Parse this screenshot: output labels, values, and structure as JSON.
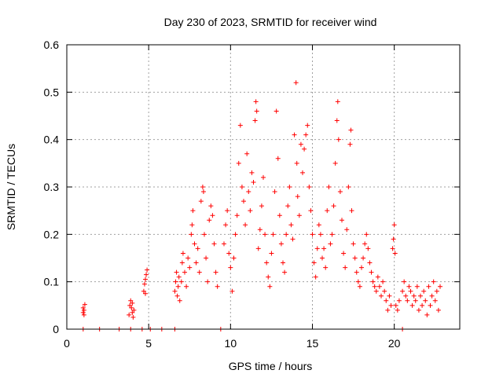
{
  "chart_data": {
    "type": "scatter",
    "title": "Day 230 of 2023, SRMTID for receiver wind",
    "xlabel": "GPS time / hours",
    "ylabel": "SRMTID / TECUs",
    "xlim": [
      0,
      24
    ],
    "ylim": [
      0,
      0.6
    ],
    "x_ticks": [
      0,
      5,
      10,
      15,
      20
    ],
    "x_tick_labels": [
      "0",
      "5",
      "10",
      "15",
      "20"
    ],
    "y_ticks": [
      0,
      0.1,
      0.2,
      0.3,
      0.4,
      0.5,
      0.6
    ],
    "y_tick_labels": [
      "0",
      "0.1",
      "0.2",
      "0.3",
      "0.4",
      "0.5",
      "0.6"
    ],
    "grid": true,
    "marker": "+",
    "color": "#ff0000",
    "series": [
      {
        "name": "SRMTID",
        "points": [
          [
            1.0,
            0.035
          ],
          [
            1.0,
            0.045
          ],
          [
            1.05,
            0.04
          ],
          [
            1.1,
            0.052
          ],
          [
            1.05,
            0.03
          ],
          [
            3.8,
            0.03
          ],
          [
            3.85,
            0.05
          ],
          [
            3.9,
            0.06
          ],
          [
            3.95,
            0.045
          ],
          [
            4.0,
            0.035
          ],
          [
            4.0,
            0.055
          ],
          [
            4.05,
            0.025
          ],
          [
            4.1,
            0.04
          ],
          [
            4.7,
            0.08
          ],
          [
            4.75,
            0.095
          ],
          [
            4.8,
            0.105
          ],
          [
            4.85,
            0.115
          ],
          [
            4.9,
            0.125
          ],
          [
            4.8,
            0.075
          ],
          [
            6.6,
            0.08
          ],
          [
            6.65,
            0.1
          ],
          [
            6.7,
            0.12
          ],
          [
            6.75,
            0.07
          ],
          [
            6.8,
            0.09
          ],
          [
            6.85,
            0.11
          ],
          [
            6.9,
            0.06
          ],
          [
            7.0,
            0.1
          ],
          [
            7.05,
            0.14
          ],
          [
            7.1,
            0.16
          ],
          [
            7.2,
            0.12
          ],
          [
            7.3,
            0.09
          ],
          [
            7.4,
            0.15
          ],
          [
            7.5,
            0.13
          ],
          [
            7.6,
            0.2
          ],
          [
            7.65,
            0.22
          ],
          [
            7.7,
            0.25
          ],
          [
            7.8,
            0.18
          ],
          [
            7.9,
            0.14
          ],
          [
            8.0,
            0.17
          ],
          [
            8.1,
            0.12
          ],
          [
            8.2,
            0.27
          ],
          [
            8.3,
            0.3
          ],
          [
            8.35,
            0.29
          ],
          [
            8.4,
            0.2
          ],
          [
            8.5,
            0.15
          ],
          [
            8.6,
            0.1
          ],
          [
            8.7,
            0.23
          ],
          [
            8.8,
            0.26
          ],
          [
            8.9,
            0.24
          ],
          [
            9.0,
            0.18
          ],
          [
            9.1,
            0.12
          ],
          [
            9.2,
            0.09
          ],
          [
            9.6,
            0.18
          ],
          [
            9.7,
            0.22
          ],
          [
            9.8,
            0.25
          ],
          [
            9.9,
            0.16
          ],
          [
            10.0,
            0.13
          ],
          [
            10.1,
            0.08
          ],
          [
            10.2,
            0.15
          ],
          [
            10.3,
            0.2
          ],
          [
            10.4,
            0.24
          ],
          [
            10.5,
            0.35
          ],
          [
            10.6,
            0.43
          ],
          [
            10.7,
            0.3
          ],
          [
            10.8,
            0.27
          ],
          [
            10.9,
            0.22
          ],
          [
            11.0,
            0.37
          ],
          [
            11.1,
            0.29
          ],
          [
            11.2,
            0.25
          ],
          [
            11.3,
            0.33
          ],
          [
            11.4,
            0.31
          ],
          [
            11.5,
            0.44
          ],
          [
            11.55,
            0.48
          ],
          [
            11.6,
            0.46
          ],
          [
            11.7,
            0.17
          ],
          [
            11.8,
            0.21
          ],
          [
            11.9,
            0.26
          ],
          [
            12.0,
            0.32
          ],
          [
            12.1,
            0.2
          ],
          [
            12.2,
            0.14
          ],
          [
            12.3,
            0.11
          ],
          [
            12.4,
            0.09
          ],
          [
            12.5,
            0.16
          ],
          [
            12.6,
            0.2
          ],
          [
            12.7,
            0.29
          ],
          [
            12.8,
            0.46
          ],
          [
            12.9,
            0.36
          ],
          [
            13.0,
            0.24
          ],
          [
            13.1,
            0.18
          ],
          [
            13.2,
            0.14
          ],
          [
            13.3,
            0.12
          ],
          [
            13.4,
            0.2
          ],
          [
            13.5,
            0.26
          ],
          [
            13.6,
            0.3
          ],
          [
            13.7,
            0.22
          ],
          [
            13.8,
            0.19
          ],
          [
            13.9,
            0.41
          ],
          [
            14.0,
            0.52
          ],
          [
            14.05,
            0.35
          ],
          [
            14.1,
            0.28
          ],
          [
            14.2,
            0.24
          ],
          [
            14.3,
            0.39
          ],
          [
            14.4,
            0.33
          ],
          [
            14.5,
            0.38
          ],
          [
            14.6,
            0.41
          ],
          [
            14.7,
            0.43
          ],
          [
            14.8,
            0.3
          ],
          [
            14.9,
            0.25
          ],
          [
            15.0,
            0.2
          ],
          [
            15.1,
            0.14
          ],
          [
            15.2,
            0.11
          ],
          [
            15.3,
            0.17
          ],
          [
            15.4,
            0.22
          ],
          [
            15.5,
            0.2
          ],
          [
            15.6,
            0.15
          ],
          [
            15.7,
            0.17
          ],
          [
            15.8,
            0.13
          ],
          [
            15.9,
            0.25
          ],
          [
            16.0,
            0.3
          ],
          [
            16.1,
            0.18
          ],
          [
            16.2,
            0.2
          ],
          [
            16.3,
            0.26
          ],
          [
            16.4,
            0.35
          ],
          [
            16.5,
            0.44
          ],
          [
            16.55,
            0.48
          ],
          [
            16.6,
            0.4
          ],
          [
            16.7,
            0.29
          ],
          [
            16.8,
            0.23
          ],
          [
            16.9,
            0.16
          ],
          [
            17.0,
            0.13
          ],
          [
            17.1,
            0.21
          ],
          [
            17.2,
            0.3
          ],
          [
            17.3,
            0.39
          ],
          [
            17.35,
            0.42
          ],
          [
            17.4,
            0.25
          ],
          [
            17.5,
            0.18
          ],
          [
            17.6,
            0.15
          ],
          [
            17.7,
            0.12
          ],
          [
            17.8,
            0.1
          ],
          [
            17.9,
            0.09
          ],
          [
            18.0,
            0.13
          ],
          [
            18.1,
            0.15
          ],
          [
            18.2,
            0.18
          ],
          [
            18.3,
            0.2
          ],
          [
            18.4,
            0.17
          ],
          [
            18.5,
            0.14
          ],
          [
            18.6,
            0.12
          ],
          [
            18.7,
            0.1
          ],
          [
            18.8,
            0.09
          ],
          [
            18.9,
            0.08
          ],
          [
            19.0,
            0.11
          ],
          [
            19.1,
            0.09
          ],
          [
            19.2,
            0.07
          ],
          [
            19.3,
            0.1
          ],
          [
            19.4,
            0.08
          ],
          [
            19.5,
            0.06
          ],
          [
            19.6,
            0.04
          ],
          [
            19.7,
            0.07
          ],
          [
            19.8,
            0.05
          ],
          [
            19.9,
            0.17
          ],
          [
            19.95,
            0.19
          ],
          [
            20.0,
            0.22
          ],
          [
            20.05,
            0.16
          ],
          [
            20.1,
            0.05
          ],
          [
            20.2,
            0.04
          ],
          [
            20.3,
            0.06
          ],
          [
            20.5,
            0.08
          ],
          [
            20.6,
            0.1
          ],
          [
            20.7,
            0.07
          ],
          [
            20.8,
            0.06
          ],
          [
            20.9,
            0.09
          ],
          [
            21.0,
            0.08
          ],
          [
            21.1,
            0.05
          ],
          [
            21.2,
            0.07
          ],
          [
            21.3,
            0.06
          ],
          [
            21.4,
            0.09
          ],
          [
            21.5,
            0.04
          ],
          [
            21.6,
            0.07
          ],
          [
            21.7,
            0.05
          ],
          [
            21.8,
            0.08
          ],
          [
            21.9,
            0.06
          ],
          [
            22.0,
            0.03
          ],
          [
            22.1,
            0.09
          ],
          [
            22.2,
            0.05
          ],
          [
            22.3,
            0.07
          ],
          [
            22.4,
            0.1
          ],
          [
            22.5,
            0.06
          ],
          [
            22.6,
            0.08
          ],
          [
            22.7,
            0.04
          ],
          [
            22.8,
            0.09
          ],
          [
            1.0,
            0
          ],
          [
            2.0,
            0
          ],
          [
            3.2,
            0
          ],
          [
            3.9,
            0
          ],
          [
            4.6,
            0
          ],
          [
            5.1,
            0
          ],
          [
            5.8,
            0
          ],
          [
            6.6,
            0
          ],
          [
            9.4,
            0
          ],
          [
            20.5,
            0
          ]
        ]
      }
    ]
  }
}
